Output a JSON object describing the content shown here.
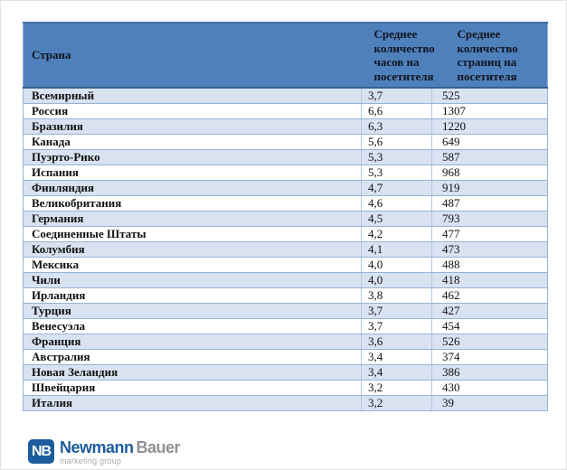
{
  "table": {
    "columns": [
      {
        "label": "Страна"
      },
      {
        "label": "Среднее количество часов на посетителя"
      },
      {
        "label": "Среднее количество страниц на посетителя"
      }
    ],
    "rows": [
      {
        "country": "Всемирный",
        "hours": "3,7",
        "pages": "525"
      },
      {
        "country": "Россия",
        "hours": "6,6",
        "pages": "1307"
      },
      {
        "country": "Бразилия",
        "hours": "6,3",
        "pages": "1220"
      },
      {
        "country": "Канада",
        "hours": "5,6",
        "pages": "649"
      },
      {
        "country": "Пуэрто-Рико",
        "hours": "5,3",
        "pages": "587"
      },
      {
        "country": "Испания",
        "hours": "5,3",
        "pages": "968"
      },
      {
        "country": "Финляндия",
        "hours": "4,7",
        "pages": "919"
      },
      {
        "country": "Великобритания",
        "hours": "4,6",
        "pages": "487"
      },
      {
        "country": "Германия",
        "hours": "4,5",
        "pages": "793"
      },
      {
        "country": "Соединенные Штаты",
        "hours": "4,2",
        "pages": "477"
      },
      {
        "country": "Колумбия",
        "hours": "4,1",
        "pages": "473"
      },
      {
        "country": "Мексика",
        "hours": "4,0",
        "pages": "488"
      },
      {
        "country": "Чили",
        "hours": "4,0",
        "pages": "418"
      },
      {
        "country": "Ирландия",
        "hours": "3,8",
        "pages": "462"
      },
      {
        "country": "Турция",
        "hours": "3,7",
        "pages": "427"
      },
      {
        "country": "Венесуэла",
        "hours": "3,7",
        "pages": "454"
      },
      {
        "country": "Франция",
        "hours": "3,6",
        "pages": "526"
      },
      {
        "country": "Австралия",
        "hours": "3,4",
        "pages": "374"
      },
      {
        "country": "Новая Зеландия",
        "hours": "3,4",
        "pages": "386"
      },
      {
        "country": "Швейцария",
        "hours": "3,2",
        "pages": "430"
      },
      {
        "country": "Италия",
        "hours": "3,2",
        "pages": "39"
      }
    ]
  },
  "chart_data": {
    "type": "table",
    "columns": [
      "Страна",
      "Среднее количество часов на посетителя",
      "Среднее количество страниц на посетителя"
    ],
    "rows": [
      [
        "Всемирный",
        "3,7",
        "525"
      ],
      [
        "Россия",
        "6,6",
        "1307"
      ],
      [
        "Бразилия",
        "6,3",
        "1220"
      ],
      [
        "Канада",
        "5,6",
        "649"
      ],
      [
        "Пуэрто-Рико",
        "5,3",
        "587"
      ],
      [
        "Испания",
        "5,3",
        "968"
      ],
      [
        "Финляндия",
        "4,7",
        "919"
      ],
      [
        "Великобритания",
        "4,6",
        "487"
      ],
      [
        "Германия",
        "4,5",
        "793"
      ],
      [
        "Соединенные Штаты",
        "4,2",
        "477"
      ],
      [
        "Колумбия",
        "4,1",
        "473"
      ],
      [
        "Мексика",
        "4,0",
        "488"
      ],
      [
        "Чили",
        "4,0",
        "418"
      ],
      [
        "Ирландия",
        "3,8",
        "462"
      ],
      [
        "Турция",
        "3,7",
        "427"
      ],
      [
        "Венесуэла",
        "3,7",
        "454"
      ],
      [
        "Франция",
        "3,6",
        "526"
      ],
      [
        "Австралия",
        "3,4",
        "374"
      ],
      [
        "Новая Зеландия",
        "3,4",
        "386"
      ],
      [
        "Швейцария",
        "3,2",
        "430"
      ],
      [
        "Италия",
        "3,2",
        "39"
      ]
    ]
  },
  "logo": {
    "icon_text": "NB",
    "name_primary": "Newmann",
    "name_secondary": "Bauer",
    "tagline": "marketing group"
  },
  "colors": {
    "header_bg": "#4e80bc",
    "row_alt_bg": "#d9e2f1",
    "row_bg": "#ffffff",
    "border": "#95b3d7",
    "header_border_bottom": "#38618f",
    "logo_blue": "#1d5c9e",
    "logo_gray": "#8e9296"
  }
}
